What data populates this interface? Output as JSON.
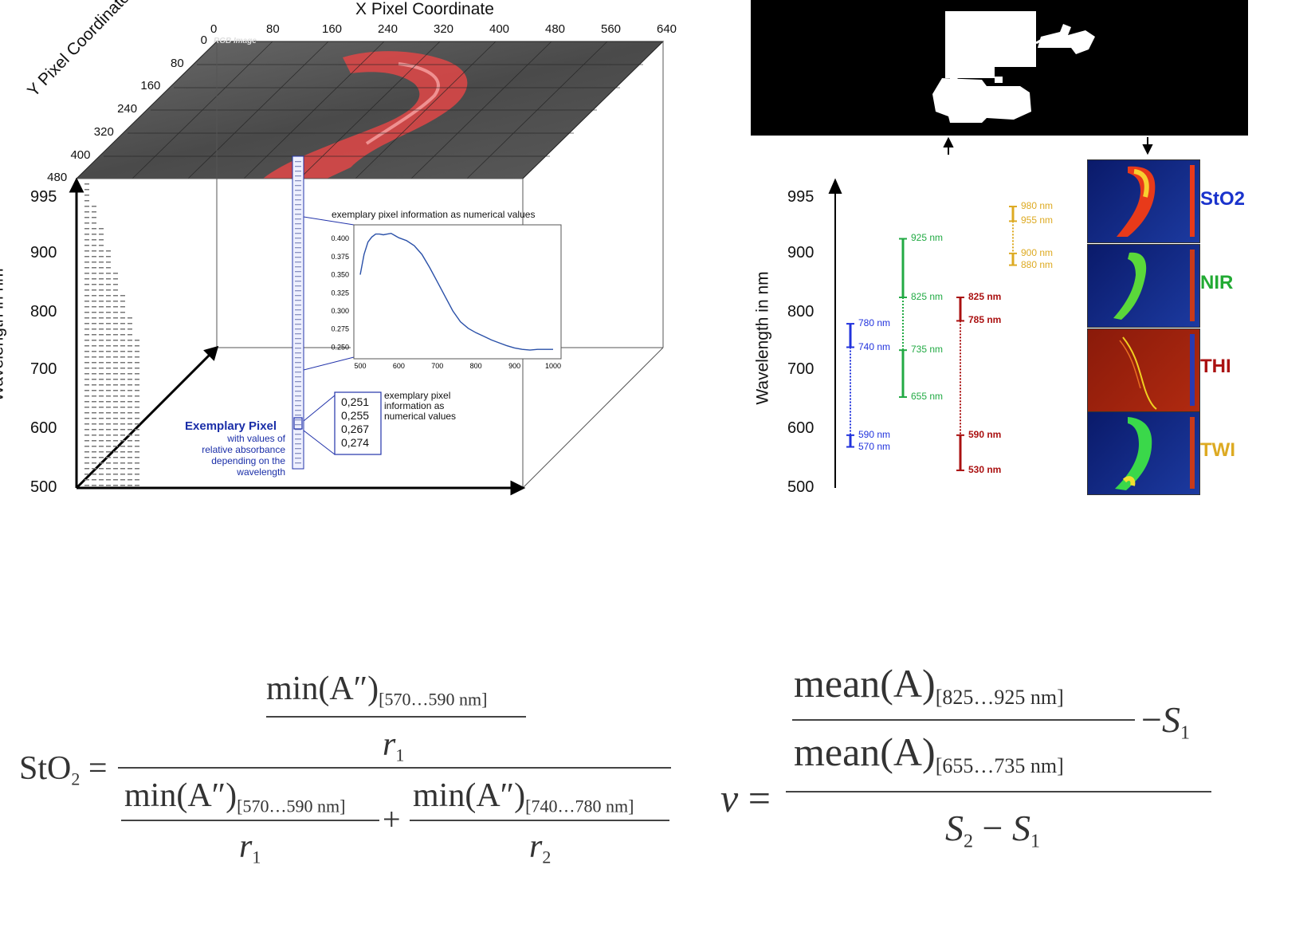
{
  "cube": {
    "x_axis_title": "X Pixel Coordinate",
    "x_ticks": [
      "0",
      "80",
      "160",
      "240",
      "320",
      "400",
      "480",
      "560",
      "640"
    ],
    "y_axis_title": "Y Pixel Coordinate",
    "y_ticks": [
      "0",
      "80",
      "160",
      "240",
      "320",
      "400",
      "480"
    ],
    "z_axis_title": "Wavelength in nm",
    "z_ticks": [
      "995",
      "900",
      "800",
      "700",
      "600",
      "500"
    ],
    "rgb_label": "RGB Image",
    "exemplary_pixel_title": "Exemplary Pixel",
    "exemplary_pixel_desc": [
      "with values of",
      "relative absorbance",
      "depending on the",
      "wavelength"
    ],
    "values_box": [
      "0,251",
      "0,255",
      "0,267",
      "0,274"
    ],
    "values_caption": [
      "exemplary pixel",
      "information as",
      "numerical values"
    ],
    "spectrum_caption": "exemplary pixel information as numerical values"
  },
  "chart_data": {
    "type": "line",
    "title": "",
    "xlabel": "",
    "ylabel": "",
    "xlim": [
      500,
      1000
    ],
    "ylim": [
      0.245,
      0.41
    ],
    "x_ticks": [
      "500",
      "600",
      "700",
      "800",
      "900",
      "1000"
    ],
    "y_ticks": [
      "0.250",
      "0.275",
      "0.300",
      "0.325",
      "0.350",
      "0.375",
      "0.400"
    ],
    "series": [
      {
        "x": [
          500,
          510,
          520,
          530,
          540,
          550,
          560,
          570,
          580,
          590,
          600,
          620,
          640,
          660,
          680,
          700,
          720,
          740,
          760,
          780,
          800,
          820,
          840,
          860,
          880,
          900,
          920,
          940,
          960,
          980,
          1000
        ],
        "values": [
          0.35,
          0.378,
          0.395,
          0.402,
          0.406,
          0.406,
          0.405,
          0.406,
          0.407,
          0.404,
          0.401,
          0.397,
          0.39,
          0.378,
          0.36,
          0.34,
          0.32,
          0.3,
          0.285,
          0.276,
          0.27,
          0.265,
          0.26,
          0.256,
          0.252,
          0.249,
          0.247,
          0.246,
          0.247,
          0.247,
          0.247
        ]
      }
    ]
  },
  "index_panel": {
    "z_axis_title": "Wavelength in nm",
    "z_ticks": [
      "995",
      "900",
      "800",
      "700",
      "600",
      "500"
    ],
    "stO2_ranges": {
      "color": "#2233dd",
      "labels": [
        "780 nm",
        "740 nm",
        "590 nm",
        "570 nm"
      ]
    },
    "nir_ranges": {
      "color": "#22aa44",
      "labels": [
        "925 nm",
        "825 nm",
        "735 nm",
        "655 nm"
      ]
    },
    "thi_ranges": {
      "color": "#aa1111",
      "labels": [
        "825 nm",
        "785 nm",
        "590 nm",
        "530 nm"
      ]
    },
    "twi_ranges": {
      "color": "#ddaa22",
      "labels": [
        "980 nm",
        "955 nm",
        "900 nm",
        "880 nm"
      ]
    },
    "index_labels": [
      {
        "text": "StO2",
        "color": "#1a33cc"
      },
      {
        "text": "NIR",
        "color": "#22aa33"
      },
      {
        "text": "THI",
        "color": "#aa1111"
      },
      {
        "text": "TWI",
        "color": "#ddaa22"
      }
    ]
  },
  "formulas": {
    "sto2_lhs": "StO",
    "sto2_lhs_sub": "2",
    "min_expr": "min(A″)",
    "range_570_590": "[570…590 nm]",
    "range_740_780": "[740…780 nm]",
    "r": "r",
    "r1_sub": "1",
    "r2_sub": "2",
    "nu": "ν",
    "mean_expr": "mean(A)",
    "range_825_925": "[825…925 nm]",
    "range_655_735": "[655…735 nm]",
    "s": "S",
    "s1_sub": "1",
    "s2_sub": "2",
    "eq": "=",
    "plus": "+",
    "minus": "−"
  }
}
